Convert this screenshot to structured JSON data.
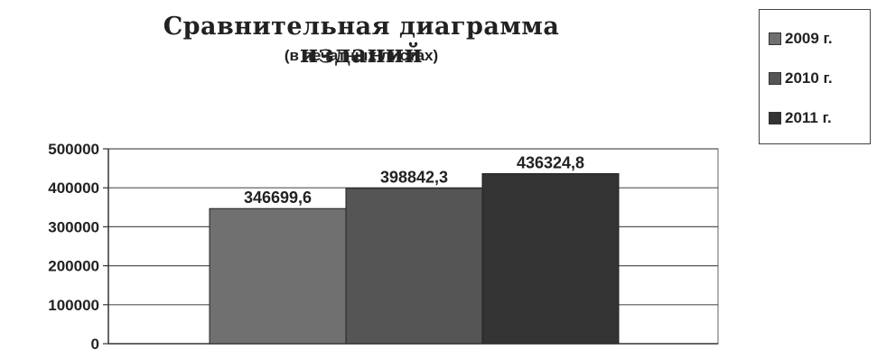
{
  "chart_data": {
    "type": "bar",
    "title": "Сравнительная диаграмма изданий",
    "subtitle": "(в печатных листах)",
    "series": [
      {
        "name": "2009 г.",
        "value": 346699.6,
        "label": "346699,6",
        "color": "#707070"
      },
      {
        "name": "2010 г.",
        "value": 398842.3,
        "label": "398842,3",
        "color": "#555555"
      },
      {
        "name": "2011 г.",
        "value": 436324.8,
        "label": "436324,8",
        "color": "#333333"
      }
    ],
    "yticks": [
      {
        "value": 0,
        "label": "0"
      },
      {
        "value": 100000,
        "label": "100000"
      },
      {
        "value": 200000,
        "label": "200000"
      },
      {
        "value": 300000,
        "label": "300000"
      },
      {
        "value": 400000,
        "label": "400000"
      },
      {
        "value": 500000,
        "label": "500000"
      }
    ],
    "ylim": [
      0,
      500000
    ],
    "grid": true,
    "legend_position": "top-right"
  }
}
